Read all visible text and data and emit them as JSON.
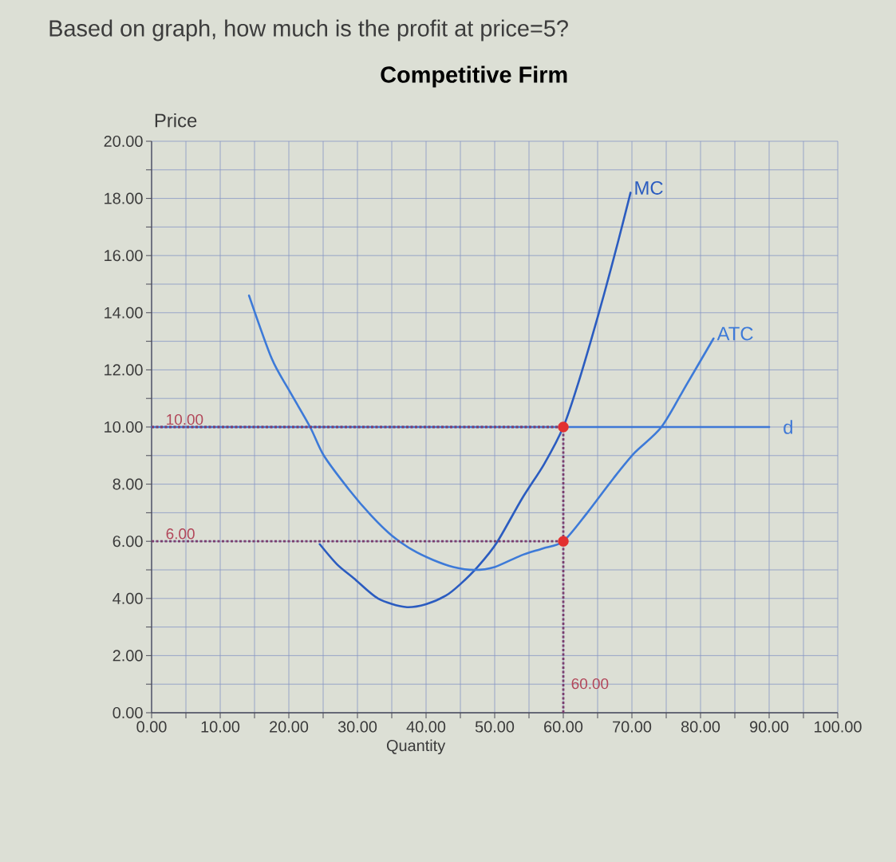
{
  "chart_data": {
    "type": "line",
    "title": "Competitive Firm",
    "xlabel": "Quantity",
    "ylabel": "Price",
    "annotations": [
      "Based on graph, how much is the profit at price=5?",
      {
        "text": "10.00",
        "y": 10
      },
      {
        "text": "6.00",
        "y": 6
      },
      {
        "text": "60.00",
        "x": 60
      }
    ],
    "xlim": [
      0,
      100
    ],
    "ylim": [
      0,
      20
    ],
    "xticks": [
      {
        "value": 0,
        "label": "0.00"
      },
      {
        "value": 5,
        "label": null
      },
      {
        "value": 10,
        "label": "10.00"
      },
      {
        "value": 15,
        "label": null
      },
      {
        "value": 20,
        "label": "20.00"
      },
      {
        "value": 25,
        "label": null
      },
      {
        "value": 30,
        "label": "30.00"
      },
      {
        "value": 35,
        "label": null
      },
      {
        "value": 40,
        "label": "40.00"
      },
      {
        "value": 45,
        "label": null
      },
      {
        "value": 50,
        "label": "50.00"
      },
      {
        "value": 55,
        "label": null
      },
      {
        "value": 60,
        "label": "60.00"
      },
      {
        "value": 65,
        "label": null
      },
      {
        "value": 70,
        "label": "70.00"
      },
      {
        "value": 75,
        "label": null
      },
      {
        "value": 80,
        "label": "80.00"
      },
      {
        "value": 85,
        "label": null
      },
      {
        "value": 90,
        "label": "90.00"
      },
      {
        "value": 95,
        "label": null
      },
      {
        "value": 100,
        "label": "100.00"
      }
    ],
    "yticks": [
      {
        "value": 0,
        "label": "0.00"
      },
      {
        "value": 1,
        "label": null
      },
      {
        "value": 2,
        "label": "2.00"
      },
      {
        "value": 3,
        "label": null
      },
      {
        "value": 4,
        "label": "4.00"
      },
      {
        "value": 5,
        "label": null
      },
      {
        "value": 6,
        "label": "6.00"
      },
      {
        "value": 7,
        "label": null
      },
      {
        "value": 8,
        "label": "8.00"
      },
      {
        "value": 9,
        "label": null
      },
      {
        "value": 10,
        "label": "10.00"
      },
      {
        "value": 11,
        "label": null
      },
      {
        "value": 12,
        "label": "12.00"
      },
      {
        "value": 13,
        "label": null
      },
      {
        "value": 14,
        "label": "14.00"
      },
      {
        "value": 15,
        "label": null
      },
      {
        "value": 16,
        "label": "16.00"
      },
      {
        "value": 17,
        "label": null
      },
      {
        "value": 18,
        "label": "18.00"
      },
      {
        "value": 19,
        "label": null
      },
      {
        "value": 20,
        "label": "20.00"
      }
    ],
    "grid": true,
    "legend": false,
    "series": [
      {
        "name": "MC",
        "color": "#2b5cc0",
        "x": [
          24.5,
          27,
          29.5,
          33,
          37,
          40,
          42.9,
          45,
          47.5,
          50.3,
          54,
          57.2,
          60,
          62,
          64,
          66,
          68,
          69.8
        ],
        "values": [
          5.9,
          5.2,
          4.7,
          4.0,
          3.7,
          3.8,
          4.1,
          4.5,
          5.1,
          5.95,
          7.5,
          8.7,
          10,
          11.4,
          13.0,
          14.7,
          16.5,
          18.2
        ]
      },
      {
        "name": "ATC",
        "color": "#3d7ad8",
        "x": [
          14.2,
          17.5,
          20,
          23.1,
          25.1,
          28.8,
          32,
          35,
          38,
          41,
          44,
          47,
          50,
          53.8,
          57,
          60,
          63.5,
          67.3,
          70.4,
          74.3,
          78,
          81.9
        ],
        "values": [
          14.6,
          12.4,
          11.3,
          10.0,
          9.0,
          7.8,
          6.9,
          6.2,
          5.7,
          5.35,
          5.1,
          5.0,
          5.1,
          5.5,
          5.75,
          6.0,
          7.0,
          8.2,
          9.1,
          10.0,
          11.5,
          13.1
        ]
      },
      {
        "name": "d",
        "color": "#3f78d6",
        "x": [
          0,
          90
        ],
        "values": [
          10,
          10
        ]
      },
      {
        "type": "line",
        "line_style": "dotted",
        "color": "#7a3d6e",
        "x": [
          0,
          60
        ],
        "values": [
          10,
          10
        ]
      },
      {
        "type": "line",
        "line_style": "dotted",
        "color": "#7a3d6e",
        "x": [
          0,
          60
        ],
        "values": [
          6,
          6
        ]
      },
      {
        "type": "line",
        "line_style": "dotted",
        "color": "#7a3d6e",
        "x": [
          60,
          60
        ],
        "values": [
          0,
          10
        ]
      },
      {
        "type": "scatter",
        "marker": "circle",
        "color": "#e23030",
        "x": [
          60,
          60
        ],
        "values": [
          10,
          6
        ]
      }
    ]
  }
}
